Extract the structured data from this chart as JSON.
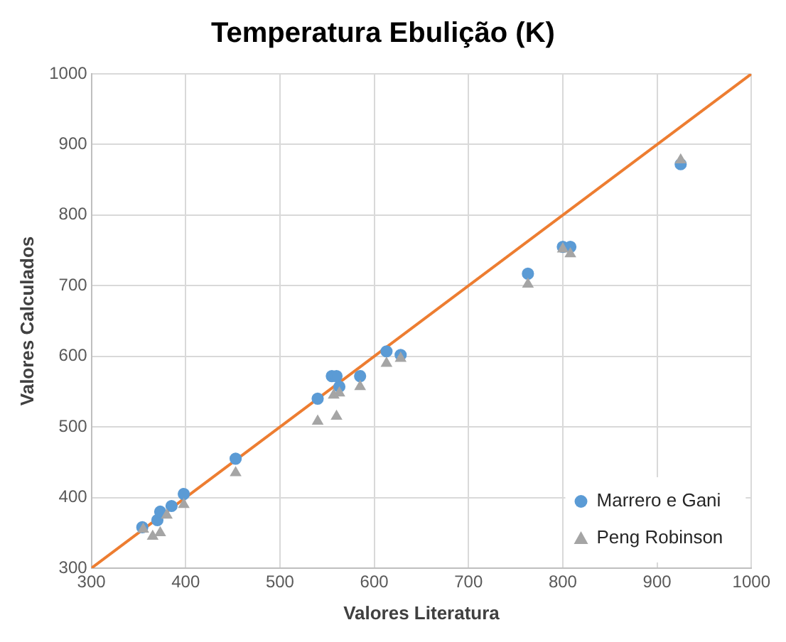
{
  "chart_data": {
    "type": "scatter",
    "title": "Temperatura Ebulição (K)",
    "xlabel": "Valores Literatura",
    "ylabel": "Valores Calculados",
    "xlim": [
      300,
      1000
    ],
    "xticks": [
      300,
      400,
      500,
      600,
      700,
      800,
      900,
      1000
    ],
    "ylim": [
      300,
      1000
    ],
    "yticks": [
      300,
      400,
      500,
      600,
      700,
      800,
      900,
      1000
    ],
    "grid": true,
    "legend": "bottom right",
    "series": [
      {
        "name": "Marrero e Gani",
        "color": "#5b9bd5",
        "marker": "circle",
        "x": [
          354,
          370,
          373,
          385,
          398,
          453,
          540,
          555,
          560,
          563,
          585,
          613,
          628,
          763,
          800,
          808,
          925
        ],
        "values": [
          358,
          368,
          380,
          388,
          405,
          455,
          540,
          572,
          572,
          557,
          572,
          607,
          602,
          717,
          755,
          755,
          872
        ]
      },
      {
        "name": "Peng Robinson",
        "color": "#a5a5a5",
        "marker": "triangle",
        "x": [
          355,
          365,
          373,
          380,
          398,
          453,
          540,
          557,
          560,
          563,
          585,
          613,
          628,
          763,
          800,
          808,
          925
        ],
        "values": [
          355,
          345,
          350,
          375,
          390,
          435,
          508,
          545,
          515,
          548,
          557,
          590,
          597,
          702,
          752,
          745,
          878
        ]
      },
      {
        "type": "line",
        "color": "#ed7d31",
        "marker": "none",
        "x": [
          300,
          1000
        ],
        "values": [
          300,
          1000
        ]
      }
    ]
  }
}
